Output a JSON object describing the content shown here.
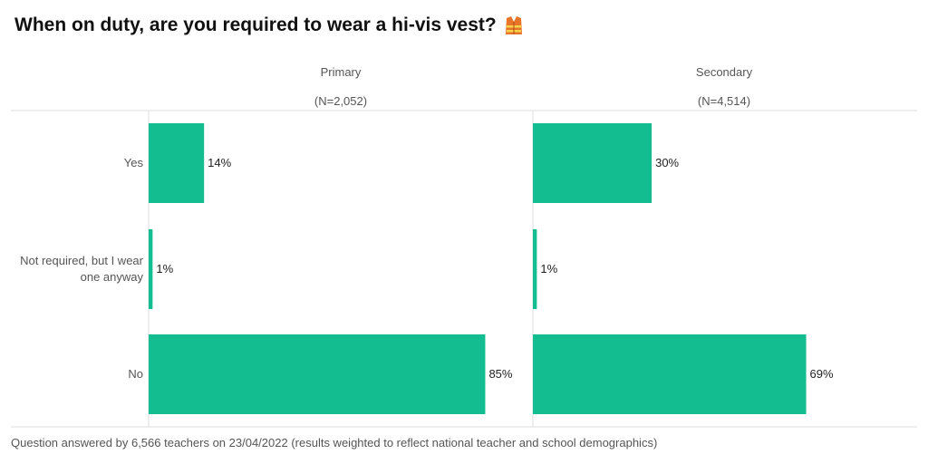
{
  "title": "When on duty, are you required to wear a hi-vis vest?",
  "title_icon": "hi-vis-vest-icon",
  "footnote": "Question answered by 6,566 teachers on 23/04/2022 (results weighted to reflect national teacher and school demographics)",
  "colors": {
    "bar": "#13bd8f",
    "grid": "#dddddd"
  },
  "chart_data": {
    "type": "bar",
    "orientation": "horizontal",
    "categories": [
      "Yes",
      [
        "Not required, but I wear",
        "one anyway"
      ],
      "No"
    ],
    "panels": [
      {
        "name": "Primary",
        "n": "(N=2,052)",
        "values": [
          14,
          1,
          85
        ],
        "labels": [
          "14%",
          "1%",
          "85%"
        ]
      },
      {
        "name": "Secondary",
        "n": "(N=4,514)",
        "values": [
          30,
          1,
          69
        ],
        "labels": [
          "30%",
          "1%",
          "69%"
        ]
      }
    ],
    "xlim": [
      0,
      100
    ],
    "unit": "%"
  }
}
